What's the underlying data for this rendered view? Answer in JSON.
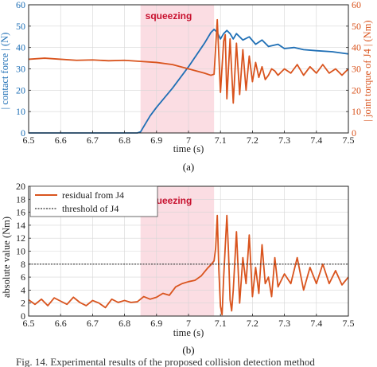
{
  "charts": [
    {
      "subfigure_label": "(a)",
      "type": "line",
      "xlabel": "time (s)",
      "ylabel_left": "| contact force | (N)",
      "ylabel_right": "| joint torque of J4 | (Nm)",
      "xlim": [
        6.5,
        7.5
      ],
      "ylim_left": [
        0,
        60
      ],
      "ylim_right": [
        0,
        60
      ],
      "xticks": [
        "6.5",
        "6.6",
        "6.7",
        "6.8",
        "6.9",
        "7",
        "7.1",
        "7.2",
        "7.3",
        "7.4",
        "7.5"
      ],
      "yticks_left": [
        "0",
        "10",
        "20",
        "30",
        "40",
        "50",
        "60"
      ],
      "yticks_right": [
        "0",
        "10",
        "20",
        "30",
        "40",
        "50",
        "60"
      ],
      "shaded_region": {
        "x": [
          6.85,
          7.08
        ],
        "label": "squeezing",
        "color": "#fbdde3"
      },
      "grid": true,
      "series": [
        {
          "axis": "left",
          "color": "#1f6fb5",
          "x": [
            6.5,
            6.6,
            6.7,
            6.8,
            6.84,
            6.85,
            6.86,
            6.88,
            6.9,
            6.95,
            7.0,
            7.05,
            7.07,
            7.08,
            7.09,
            7.1,
            7.11,
            7.12,
            7.13,
            7.14,
            7.15,
            7.17,
            7.19,
            7.21,
            7.23,
            7.25,
            7.28,
            7.3,
            7.33,
            7.36,
            7.4,
            7.45,
            7.5
          ],
          "y": [
            0,
            0,
            0,
            0,
            0,
            0.5,
            3,
            8,
            12,
            21,
            31,
            42,
            47,
            48.5,
            47,
            44,
            46.5,
            48,
            46.5,
            44,
            46.5,
            43.5,
            45,
            41.5,
            43.5,
            40.5,
            41.5,
            39.5,
            40,
            39,
            38.5,
            38,
            37
          ]
        },
        {
          "axis": "right",
          "color": "#d9541e",
          "x": [
            6.5,
            6.55,
            6.6,
            6.65,
            6.7,
            6.75,
            6.8,
            6.85,
            6.9,
            6.95,
            7.0,
            7.05,
            7.07,
            7.08,
            7.09,
            7.1,
            7.11,
            7.115,
            7.12,
            7.13,
            7.14,
            7.15,
            7.16,
            7.17,
            7.18,
            7.19,
            7.2,
            7.21,
            7.22,
            7.23,
            7.24,
            7.25,
            7.26,
            7.27,
            7.28,
            7.3,
            7.32,
            7.34,
            7.36,
            7.38,
            7.4,
            7.42,
            7.44,
            7.46,
            7.48,
            7.5
          ],
          "y": [
            34.5,
            35,
            34.5,
            34,
            34.2,
            33.8,
            34,
            33.5,
            33,
            32,
            30,
            28,
            27,
            27.5,
            53,
            19,
            43,
            46,
            16,
            44,
            14,
            42,
            18,
            39,
            20,
            36,
            24,
            33,
            26,
            31,
            25,
            27,
            30,
            29,
            27,
            30,
            28,
            32,
            27,
            31,
            28,
            32,
            28,
            30,
            27,
            30
          ]
        }
      ]
    },
    {
      "subfigure_label": "(b)",
      "type": "line",
      "xlabel": "time (s)",
      "ylabel": "absolute value (Nm)",
      "xlim": [
        6.5,
        7.5
      ],
      "ylim": [
        0,
        20
      ],
      "xticks": [
        "6.5",
        "6.6",
        "6.7",
        "6.8",
        "6.9",
        "7",
        "7.1",
        "7.2",
        "7.3",
        "7.4",
        "7.5"
      ],
      "yticks": [
        "0",
        "2",
        "4",
        "6",
        "8",
        "10",
        "12",
        "14",
        "16",
        "18",
        "20"
      ],
      "shaded_region": {
        "x": [
          6.85,
          7.08
        ],
        "label": "squeezing",
        "color": "#fbdde3"
      },
      "grid": true,
      "legend": {
        "position": "top-left",
        "entries": [
          "residual from J4",
          "threshold of J4"
        ]
      },
      "series": [
        {
          "name": "residual from J4",
          "color": "#d9541e",
          "x": [
            6.5,
            6.52,
            6.54,
            6.56,
            6.58,
            6.6,
            6.62,
            6.64,
            6.66,
            6.68,
            6.7,
            6.72,
            6.74,
            6.76,
            6.78,
            6.8,
            6.82,
            6.84,
            6.86,
            6.88,
            6.9,
            6.92,
            6.94,
            6.96,
            6.98,
            7.0,
            7.02,
            7.04,
            7.06,
            7.07,
            7.08,
            7.085,
            7.09,
            7.095,
            7.1,
            7.105,
            7.11,
            7.12,
            7.125,
            7.13,
            7.135,
            7.14,
            7.15,
            7.16,
            7.17,
            7.18,
            7.19,
            7.2,
            7.21,
            7.22,
            7.23,
            7.24,
            7.25,
            7.26,
            7.27,
            7.28,
            7.3,
            7.32,
            7.34,
            7.36,
            7.38,
            7.4,
            7.42,
            7.44,
            7.46,
            7.48,
            7.5
          ],
          "y": [
            2.5,
            1.8,
            2.6,
            1.6,
            2.8,
            2.3,
            1.8,
            2.9,
            2.1,
            1.6,
            2.4,
            2.0,
            1.3,
            2.6,
            2.1,
            2.4,
            2.1,
            2.2,
            3.0,
            2.6,
            2.9,
            3.5,
            3.2,
            4.5,
            5.0,
            5.3,
            5.5,
            6.2,
            7.4,
            7.9,
            8.5,
            10.5,
            15.5,
            7.0,
            1.5,
            0.2,
            6.0,
            15.5,
            10.0,
            2.5,
            0.8,
            4.0,
            13.0,
            2.0,
            9.0,
            5.0,
            12.5,
            3.0,
            7.5,
            3.5,
            11.0,
            5.0,
            6.0,
            3.0,
            9.0,
            4.5,
            6.5,
            5.0,
            9.0,
            4.0,
            7.5,
            5.0,
            8.0,
            5.0,
            7.0,
            4.8,
            6.0
          ]
        },
        {
          "name": "threshold of J4",
          "color": "#333333",
          "x": [
            6.5,
            7.5
          ],
          "y": [
            8,
            8
          ]
        }
      ]
    }
  ],
  "caption": "Fig. 14. Experimental results of the proposed collision detection method"
}
